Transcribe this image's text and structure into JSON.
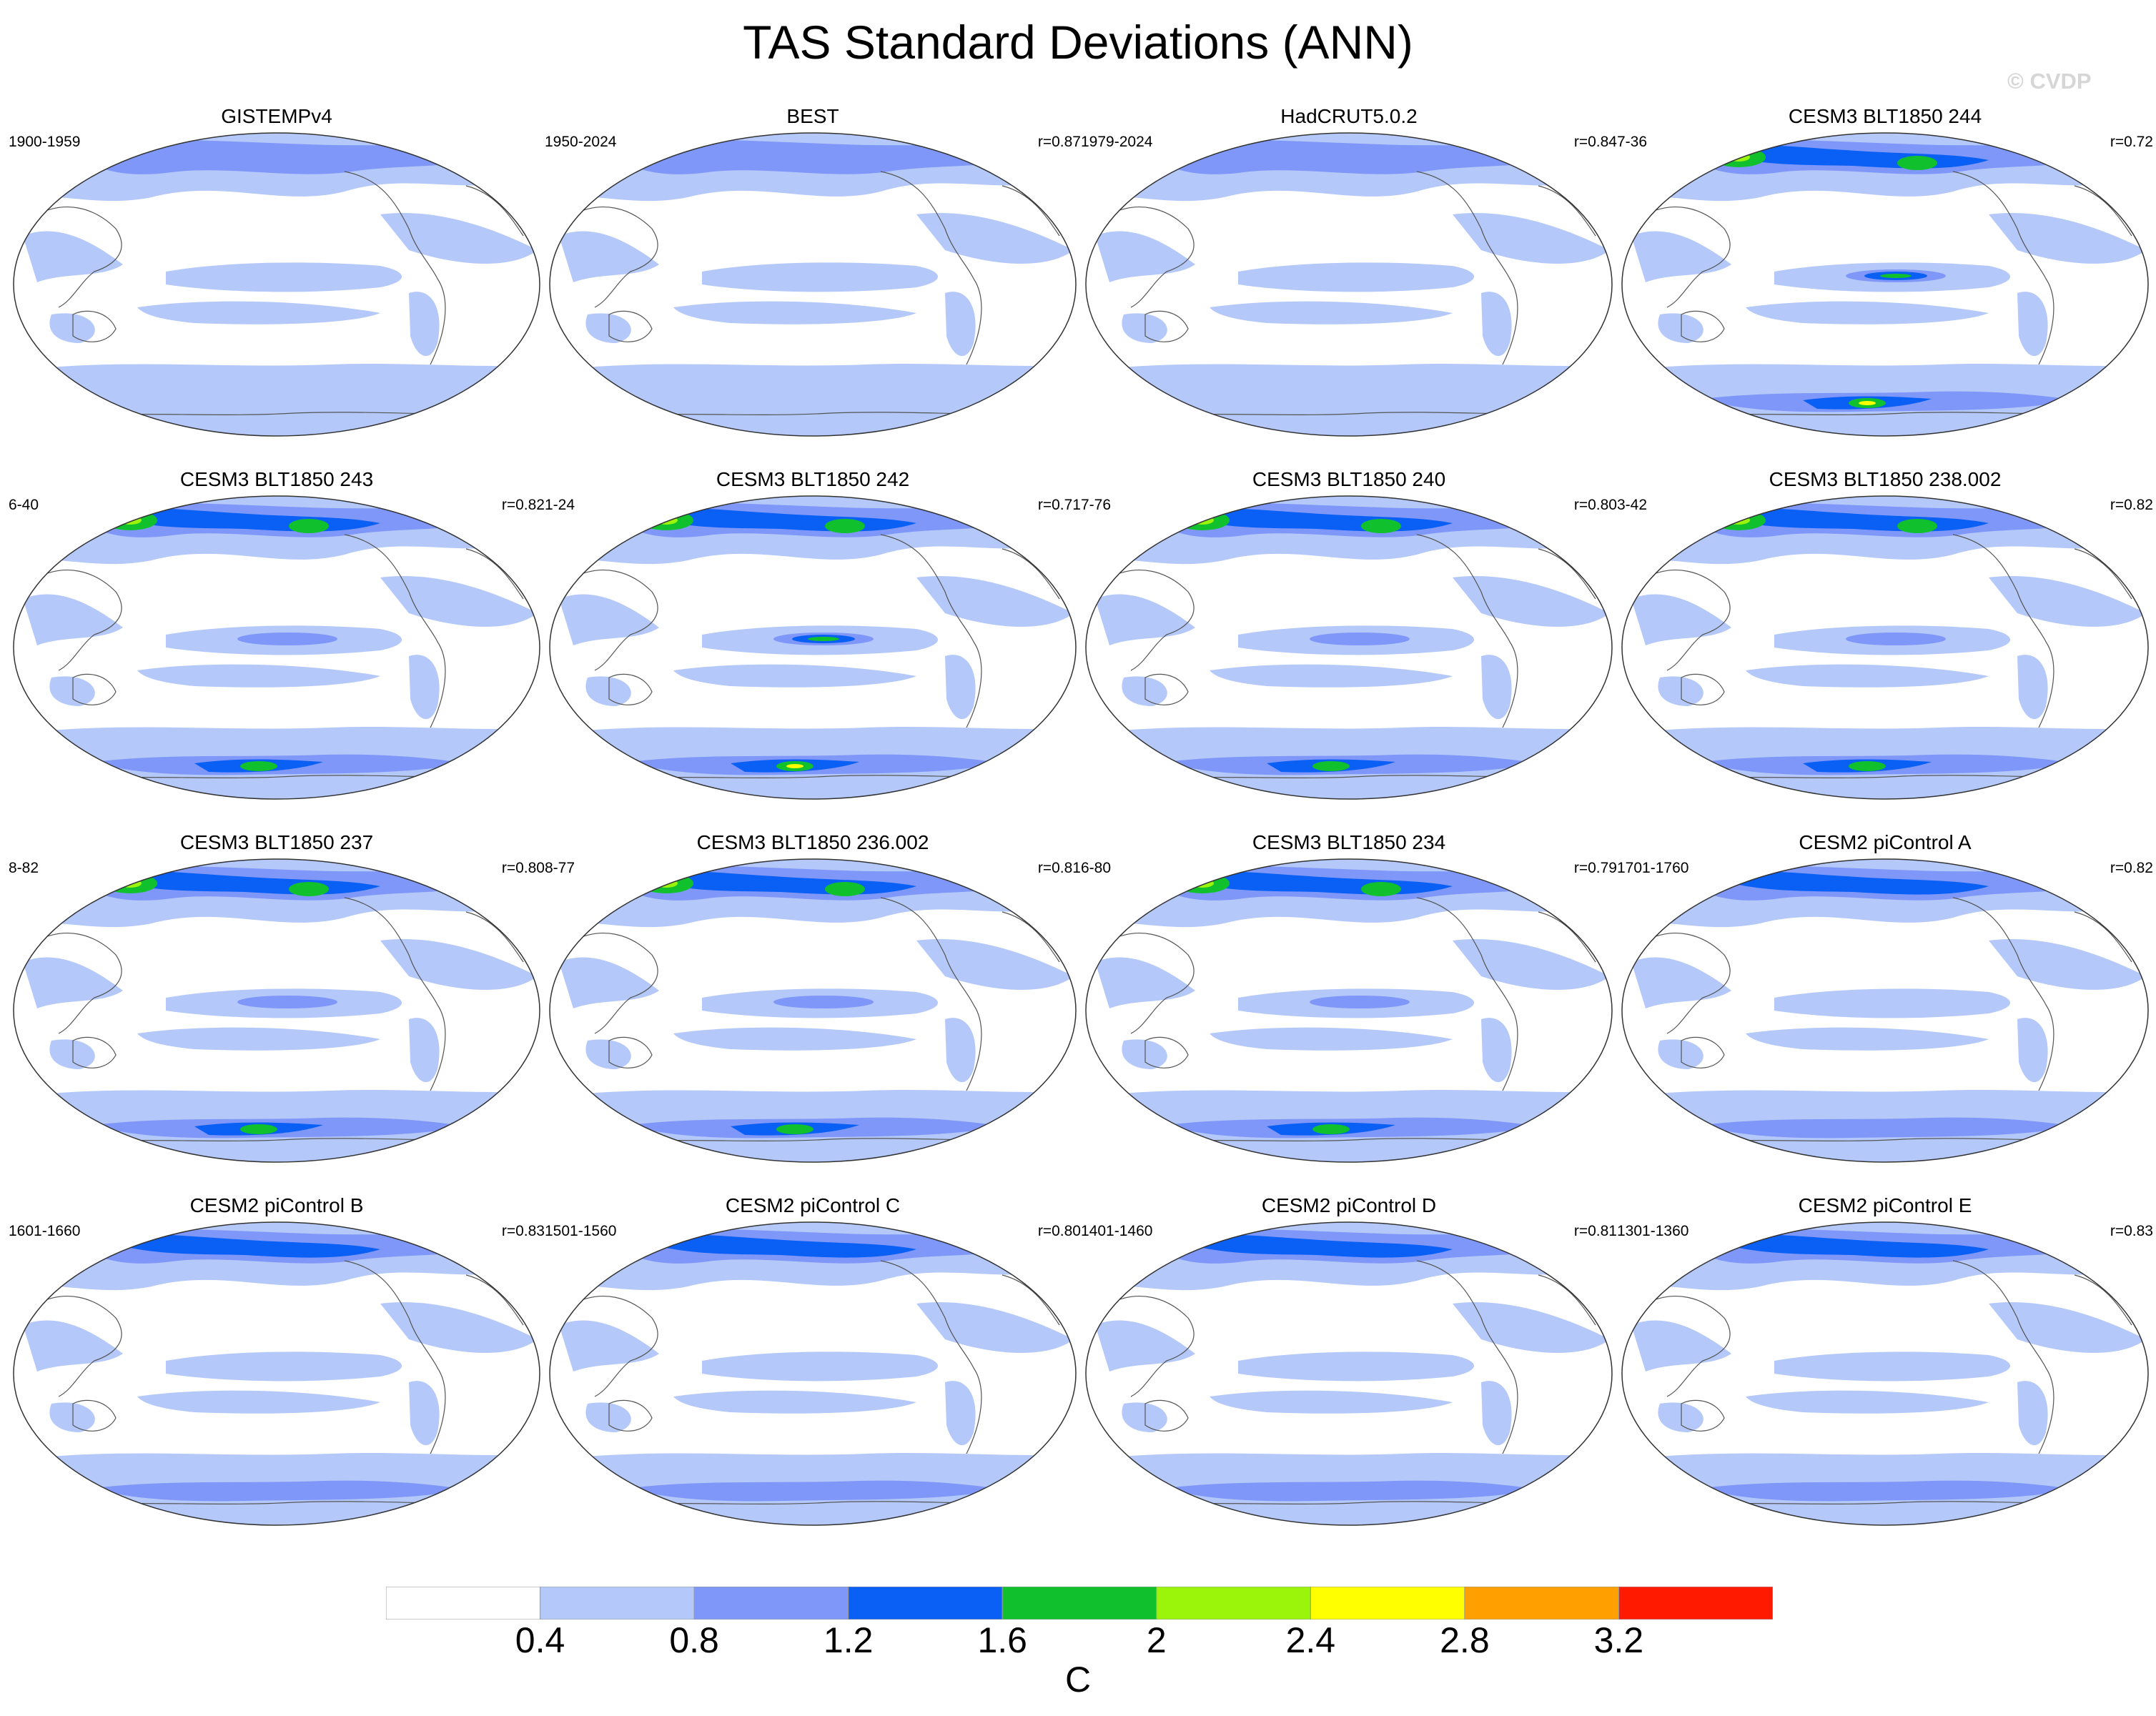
{
  "title": "TAS Standard Deviations (ANN)",
  "watermark": "© CVDP",
  "panels": [
    {
      "name": "GISTEMPv4",
      "period": "1900-1959",
      "r": "",
      "intensity": 0
    },
    {
      "name": "BEST",
      "period": "1950-2024",
      "r": "r=0.87",
      "intensity": 0
    },
    {
      "name": "HadCRUT5.0.2",
      "period": "1979-2024",
      "r": "r=0.84",
      "intensity": 0
    },
    {
      "name": "CESM3 BLT1850 244",
      "period": "7-36",
      "r": "r=0.72",
      "intensity": 3
    },
    {
      "name": "CESM3 BLT1850 243",
      "period": "6-40",
      "r": "r=0.82",
      "intensity": 2
    },
    {
      "name": "CESM3 BLT1850 242",
      "period": "1-24",
      "r": "r=0.71",
      "intensity": 3
    },
    {
      "name": "CESM3 BLT1850 240",
      "period": "7-76",
      "r": "r=0.80",
      "intensity": 2
    },
    {
      "name": "CESM3 BLT1850 238.002",
      "period": "3-42",
      "r": "r=0.82",
      "intensity": 2
    },
    {
      "name": "CESM3 BLT1850 237",
      "period": "8-82",
      "r": "r=0.80",
      "intensity": 2
    },
    {
      "name": "CESM3 BLT1850 236.002",
      "period": "8-77",
      "r": "r=0.81",
      "intensity": 2
    },
    {
      "name": "CESM3 BLT1850 234",
      "period": "6-80",
      "r": "r=0.79",
      "intensity": 2
    },
    {
      "name": "CESM2 piControl A",
      "period": "1701-1760",
      "r": "r=0.82",
      "intensity": 1
    },
    {
      "name": "CESM2 piControl B",
      "period": "1601-1660",
      "r": "r=0.83",
      "intensity": 1
    },
    {
      "name": "CESM2 piControl C",
      "period": "1501-1560",
      "r": "r=0.80",
      "intensity": 1
    },
    {
      "name": "CESM2 piControl D",
      "period": "1401-1460",
      "r": "r=0.81",
      "intensity": 1
    },
    {
      "name": "CESM2 piControl E",
      "period": "1301-1360",
      "r": "r=0.83",
      "intensity": 1
    }
  ],
  "colorbar": {
    "colors": [
      "#ffffff",
      "#b4c8fa",
      "#7f97f8",
      "#0a5ff5",
      "#10c02c",
      "#9bf50a",
      "#ffff00",
      "#ffa000",
      "#ff1a00"
    ],
    "labels": [
      "0.4",
      "0.8",
      "1.2",
      "1.6",
      "2",
      "2.4",
      "2.8",
      "3.2"
    ],
    "units": "C"
  }
}
